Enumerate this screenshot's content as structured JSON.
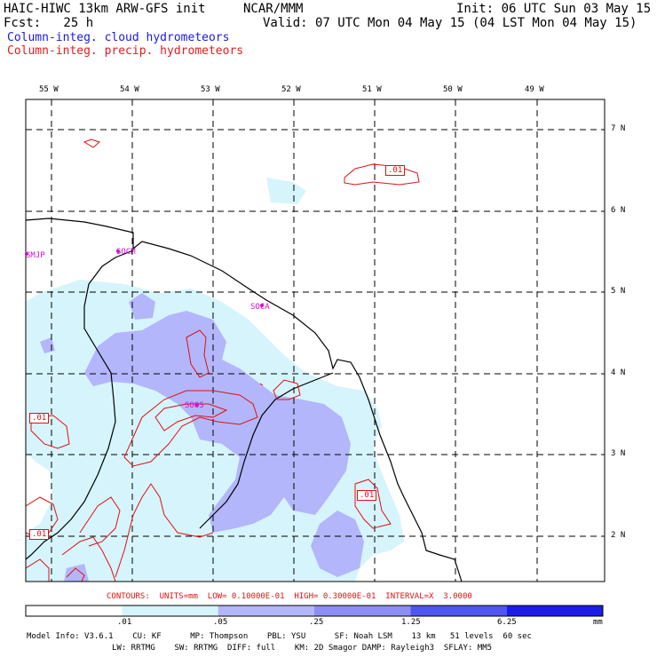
{
  "header": {
    "title_left": "HAIC-HIWC 13km ARW-GFS init",
    "title_mid": "NCAR/MMM",
    "init": "Init: 06 UTC Sun 03 May 15",
    "fcst": "Fcst:   25 h",
    "valid": "Valid: 07 UTC Mon 04 May 15 (04 LST Mon 04 May 15)",
    "legend_cloud": "Column-integ. cloud hydrometeors",
    "legend_precip": "Column-integ. precip. hydrometeors"
  },
  "colors": {
    "cloud_text": "#1a1ae6",
    "precip_text": "#e61a1a",
    "contour": "#e01010",
    "station": "#d010d0",
    "shade_light": "#d6f4fc",
    "shade_mid": "#b3b6fb"
  },
  "map": {
    "lon_labels": [
      "55 W",
      "54 W",
      "53 W",
      "52 W",
      "51 W",
      "50 W",
      "49 W"
    ],
    "lat_labels": [
      "7 N",
      "6 N",
      "5 N",
      "4 N",
      "3 N",
      "2 N"
    ],
    "stations": [
      "SMJP",
      "SOCM",
      "SOCA",
      "SOOS"
    ],
    "contour_labels": [
      ".01",
      ".01",
      ".01",
      ".01"
    ]
  },
  "footer": {
    "contours_line": "CONTOURS:  UNITS=mm  LOW= 0.10000E-01  HIGH= 0.30000E-01  INTERVAL=X  3.0000",
    "colorbar_ticks": [
      ".01",
      ".05",
      ".25",
      "1.25",
      "6.25"
    ],
    "colorbar_unit": "mm",
    "colorbar_colors": [
      "#ffffff",
      "#d6f4fc",
      "#b3b6fb",
      "#8c8ef5",
      "#5055f0",
      "#1c1ce8"
    ],
    "model_info_1": "Model Info: V3.6.1    CU: KF      MP: Thompson    PBL: YSU      SF: Noah LSM    13 km   51 levels  60 sec",
    "model_info_2": "LW: RRTMG    SW: RRTMG  DIFF: full    KM: 2D Smagor DAMP: Rayleigh3  SFLAY: MM5"
  }
}
